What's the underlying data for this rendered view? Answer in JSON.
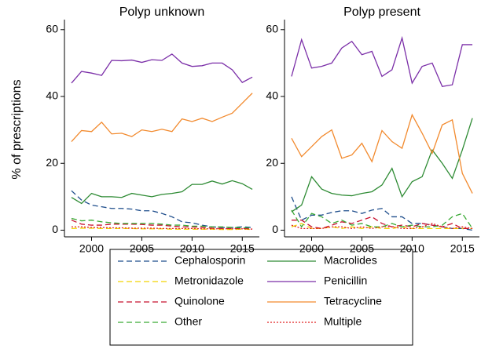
{
  "chart_data": [
    {
      "type": "line",
      "title": "Polyp unknown",
      "ylabel": "% of prescriptions",
      "x": [
        1998,
        1999,
        2000,
        2001,
        2002,
        2003,
        2004,
        2005,
        2006,
        2007,
        2008,
        2009,
        2010,
        2011,
        2012,
        2013,
        2014,
        2015,
        2016
      ],
      "xlim": [
        1997.3,
        2016.7
      ],
      "xticks": [
        2000,
        2005,
        2010,
        2015
      ],
      "ylim": [
        -2,
        63
      ],
      "yticks": [
        0,
        20,
        40,
        60
      ],
      "series": [
        {
          "name": "Cephalosporin",
          "color": "#1f4e8c",
          "style": "dashed",
          "values": [
            11.8,
            9,
            7.5,
            7,
            6.5,
            6.5,
            6.3,
            5.8,
            5.8,
            5,
            4,
            2.5,
            2.2,
            1.5,
            1,
            0.8,
            0.8,
            1,
            0.8
          ]
        },
        {
          "name": "Metronidazole",
          "color": "#f2d400",
          "style": "dashed",
          "values": [
            0.5,
            0.6,
            0.6,
            0.5,
            0.5,
            0.5,
            0.5,
            0.4,
            0.4,
            0.4,
            0.3,
            0.3,
            0.3,
            0.3,
            0.3,
            0.2,
            0.2,
            0.3,
            0.2
          ]
        },
        {
          "name": "Quinolone",
          "color": "#c8102e",
          "style": "dashed",
          "values": [
            3,
            1.8,
            1.5,
            1.5,
            1.8,
            1.8,
            1.8,
            1.7,
            1.5,
            1.5,
            1.2,
            1,
            1,
            0.8,
            0.6,
            0.5,
            0.5,
            0.5,
            0.4
          ]
        },
        {
          "name": "Other",
          "color": "#3aaa35",
          "style": "dashed",
          "values": [
            3.5,
            2.8,
            3,
            2.5,
            2.2,
            2,
            2,
            2,
            2,
            1.8,
            1.5,
            1.5,
            1.2,
            1.2,
            1,
            1,
            0.8,
            0.7,
            0.7
          ]
        },
        {
          "name": "Macrolides",
          "color": "#2e8b34",
          "style": "solid",
          "values": [
            9.8,
            8,
            11,
            10,
            10,
            9.8,
            11,
            10.5,
            10,
            10.7,
            11,
            11.5,
            13.7,
            13.7,
            14.7,
            13.8,
            14.8,
            13.9,
            12.2
          ]
        },
        {
          "name": "Penicillin",
          "color": "#7b2fa8",
          "style": "solid",
          "values": [
            44,
            47.5,
            47,
            46.3,
            50.8,
            50.7,
            50.9,
            50.2,
            51,
            50.8,
            52.7,
            50,
            49,
            49.2,
            50,
            50,
            48,
            44.2,
            45.8
          ]
        },
        {
          "name": "Tetracycline",
          "color": "#f28a2e",
          "style": "solid",
          "values": [
            26.5,
            29.8,
            29.5,
            32.3,
            28.8,
            29,
            28,
            30,
            29.5,
            30.2,
            29.5,
            33.3,
            32.5,
            33.5,
            32.5,
            33.8,
            35,
            38,
            41
          ]
        },
        {
          "name": "Multiple",
          "color": "#e02020",
          "style": "dotted",
          "values": [
            1,
            1,
            0.8,
            0.8,
            0.7,
            0.7,
            0.6,
            0.6,
            0.6,
            0.5,
            0.5,
            0.5,
            0.5,
            0.4,
            0.4,
            0.4,
            0.4,
            0.4,
            0.3
          ]
        }
      ]
    },
    {
      "type": "line",
      "title": "Polyp present",
      "x": [
        1998,
        1999,
        2000,
        2001,
        2002,
        2003,
        2004,
        2005,
        2006,
        2007,
        2008,
        2009,
        2010,
        2011,
        2012,
        2013,
        2014,
        2015,
        2016
      ],
      "xlim": [
        1997.3,
        2016.7
      ],
      "xticks": [
        2000,
        2005,
        2010,
        2015
      ],
      "ylim": [
        -2,
        63
      ],
      "yticks": [
        0,
        20,
        40,
        60
      ],
      "series": [
        {
          "name": "Cephalosporin",
          "color": "#1f4e8c",
          "style": "dashed",
          "values": [
            10,
            3,
            4.5,
            4.5,
            5.3,
            5.8,
            5.8,
            5,
            6,
            6.5,
            4,
            4,
            2,
            2,
            1.5,
            1,
            0.5,
            0.5,
            0
          ]
        },
        {
          "name": "Metronidazole",
          "color": "#f2d400",
          "style": "dashed",
          "values": [
            1,
            2,
            0.5,
            0.5,
            1,
            0.5,
            1,
            0.5,
            1,
            0.5,
            0.5,
            1,
            0.5,
            0.5,
            0.5,
            0.5,
            0.5,
            0.5,
            0.5
          ]
        },
        {
          "name": "Quinolone",
          "color": "#c8102e",
          "style": "dashed",
          "values": [
            3,
            3,
            1,
            0.5,
            1.5,
            2.5,
            2,
            3,
            4,
            2,
            1,
            1.5,
            1,
            2,
            1.5,
            1,
            2,
            0.5,
            0.5
          ]
        },
        {
          "name": "Other",
          "color": "#3aaa35",
          "style": "dashed",
          "values": [
            6,
            1,
            5,
            4,
            2,
            3,
            1.5,
            2,
            1,
            1,
            2,
            1,
            1.5,
            1,
            1,
            1.5,
            4,
            5,
            0.5
          ]
        },
        {
          "name": "Macrolides",
          "color": "#2e8b34",
          "style": "solid",
          "values": [
            5.5,
            7.5,
            16,
            12.3,
            11,
            10.5,
            10.3,
            11,
            11.5,
            13.5,
            18.5,
            10,
            14.5,
            16,
            24,
            20,
            15.5,
            24,
            33.5
          ]
        },
        {
          "name": "Penicillin",
          "color": "#7b2fa8",
          "style": "solid",
          "values": [
            46,
            57,
            48.5,
            49,
            50,
            54.5,
            56.5,
            52.5,
            53.5,
            46,
            48,
            57.5,
            44,
            49,
            50,
            43,
            43.5,
            55.5,
            55.5
          ]
        },
        {
          "name": "Tetracycline",
          "color": "#f28a2e",
          "style": "solid",
          "values": [
            27.5,
            22,
            25,
            28,
            30,
            21.5,
            22.5,
            26,
            20.5,
            29.8,
            26.5,
            24.5,
            34.5,
            29,
            23,
            31.5,
            33,
            17,
            11
          ]
        },
        {
          "name": "Multiple",
          "color": "#e02020",
          "style": "dotted",
          "values": [
            1.5,
            0.5,
            0.5,
            0.5,
            1,
            1,
            0.5,
            1,
            0.5,
            1,
            1,
            0.5,
            0.5,
            1,
            2,
            1,
            0.5,
            1,
            0.5
          ]
        }
      ]
    }
  ]
}
